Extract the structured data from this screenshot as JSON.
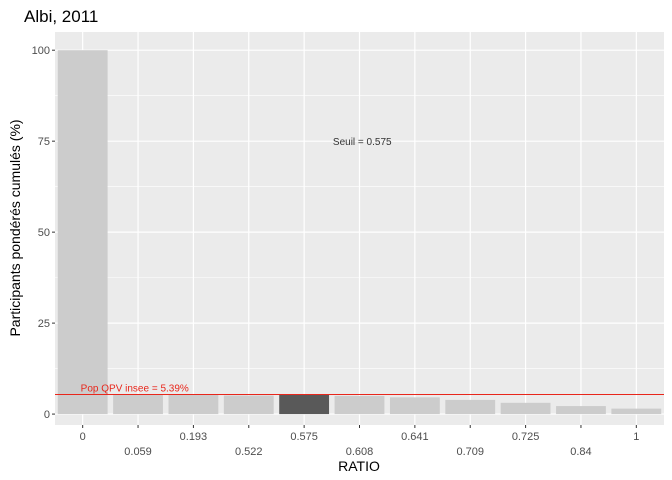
{
  "chart_data": {
    "type": "bar",
    "title": "Albi, 2011",
    "xlabel": "RATIO",
    "ylabel": "Participants pondérés cumulés (%)",
    "categories": [
      "0",
      "0.059",
      "0.193",
      "0.522",
      "0.575",
      "0.608",
      "0.641",
      "0.709",
      "0.725",
      "0.84",
      "1"
    ],
    "values": [
      100,
      5.5,
      5.3,
      5.1,
      5.39,
      5.0,
      4.6,
      3.9,
      3.1,
      2.2,
      1.5
    ],
    "highlight_index": 4,
    "ylim": [
      -3,
      105
    ],
    "yticks": [
      0,
      25,
      50,
      75,
      100
    ],
    "grid": true,
    "hline": {
      "y": 5.39,
      "label": "Pop QPV insee = 5.39%",
      "color": "#e8261b"
    },
    "annotation": {
      "text": "Seuil = 0.575",
      "x_index": 5.55,
      "y": 75
    },
    "colors": {
      "bar": "#cccccc",
      "highlight": "#595959",
      "panel": "#ebebeb",
      "grid": "#ffffff"
    }
  }
}
